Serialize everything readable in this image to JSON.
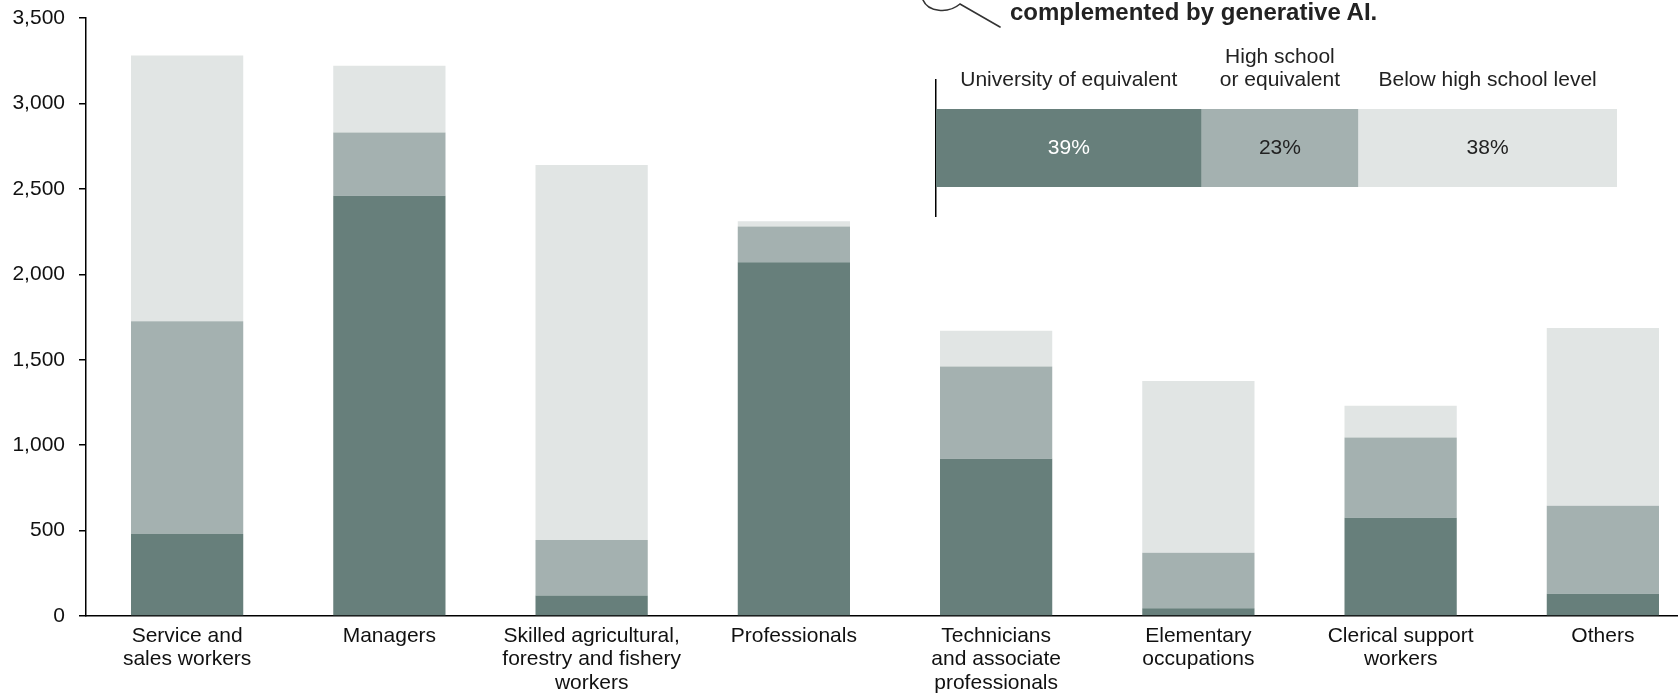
{
  "chart_data": [
    {
      "type": "bar",
      "stacked": true,
      "categories": [
        "Service and\nsales workers",
        "Managers",
        "Skilled agricultural,\nforestry and fishery\nworkers",
        "Professionals",
        "Technicians\nand associate\nprofessionals",
        "Elementary\noccupations",
        "Clerical support\nworkers",
        "Others"
      ],
      "series": [
        {
          "color": "#677f7b",
          "values": [
            480,
            2460,
            120,
            2070,
            920,
            45,
            575,
            130
          ]
        },
        {
          "color": "#a4b1b0",
          "values": [
            1245,
            370,
            325,
            210,
            540,
            325,
            470,
            515
          ]
        },
        {
          "color": "#e1e5e4",
          "values": [
            1555,
            390,
            2195,
            30,
            210,
            1005,
            185,
            1040
          ]
        }
      ],
      "ylim": [
        0,
        3500
      ],
      "yticks": [
        0,
        500,
        {
          "value": 1000,
          "label": "1,000"
        },
        {
          "value": 1500,
          "label": "1,500"
        },
        {
          "value": 2000,
          "label": "2,000"
        },
        {
          "value": 2500,
          "label": "2,500"
        },
        {
          "value": 3000,
          "label": "3,000"
        },
        {
          "value": 3500,
          "label": "3,500"
        }
      ]
    },
    {
      "type": "bar",
      "orientation": "horizontal",
      "stacked": true,
      "title": "complemented by generative AI.",
      "categories": [
        null
      ],
      "series": [
        {
          "name": "University of equivalent",
          "color": "#677f7b",
          "values": [
            39
          ],
          "value_labels": [
            "39%"
          ]
        },
        {
          "name": "High school\nor equivalent",
          "color": "#a4b1b0",
          "values": [
            23
          ],
          "value_labels": [
            "23%"
          ]
        },
        {
          "name": "Below high school level",
          "color": "#e1e5e4",
          "values": [
            38
          ],
          "value_labels": [
            "38%"
          ]
        }
      ],
      "xlim": [
        0,
        100
      ],
      "tick_labels": false
    }
  ]
}
